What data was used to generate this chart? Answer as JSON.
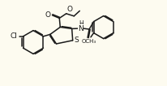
{
  "bg_color": "#FDFBF0",
  "bond_color": "#1a1a1a",
  "lw": 1.1,
  "fs": 6.5,
  "xlim": [
    0,
    10.3
  ],
  "ylim": [
    0,
    5.2
  ],
  "figsize": [
    2.06,
    1.06
  ],
  "dpi": 100
}
